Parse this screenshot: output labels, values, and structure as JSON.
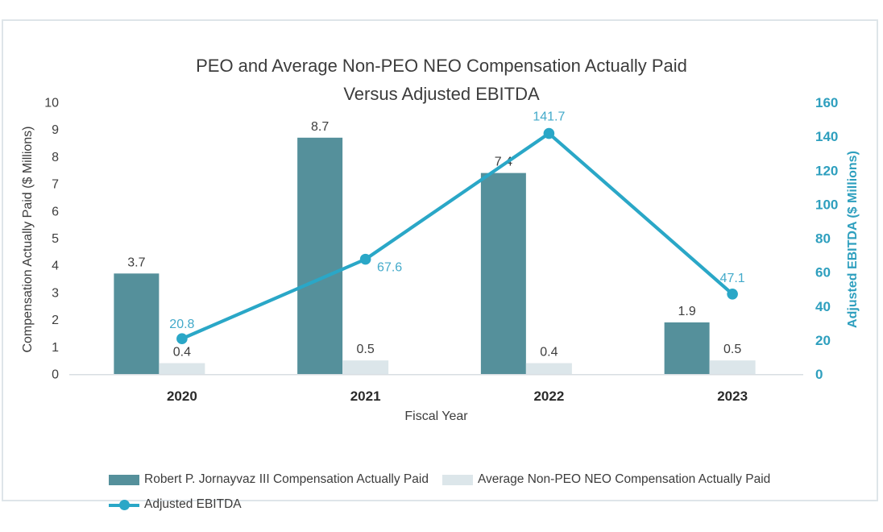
{
  "chart_data": {
    "type": "bar+line",
    "title": "PEO and Average Non-PEO NEO Compensation Actually Paid Versus Adjusted EBITDA",
    "title_lines": [
      "PEO and Average Non-PEO NEO Compensation Actually Paid",
      "Versus Adjusted EBITDA"
    ],
    "categories": [
      "2020",
      "2021",
      "2022",
      "2023"
    ],
    "series": [
      {
        "name": "Robert P. Jornayvaz III Compensation Actually Paid",
        "type": "bar",
        "axis": "left",
        "color": "#55909b",
        "values": [
          3.7,
          8.7,
          7.4,
          1.9
        ]
      },
      {
        "name": "Average Non-PEO NEO Compensation Actually Paid",
        "type": "bar",
        "axis": "left",
        "color": "#dce6ea",
        "values": [
          0.4,
          0.5,
          0.4,
          0.5
        ]
      },
      {
        "name": "Adjusted EBITDA",
        "type": "line",
        "axis": "right",
        "color": "#2aa7c7",
        "label_color": "#43aaca",
        "values": [
          20.8,
          67.6,
          141.7,
          47.1
        ]
      }
    ],
    "xlabel": "Fiscal Year",
    "ylabel_left": "Compensation Actually Paid ($ Millions)",
    "ylabel_right": "Adjusted EBITDA ($ Millions)",
    "ylim_left": [
      0,
      10
    ],
    "ytick_step_left": 1,
    "ylim_right": [
      0,
      160
    ],
    "ytick_step_right": 20,
    "grid": false,
    "legend_position": "bottom-left",
    "axis_colors": {
      "left_ticks": "#3e3e3e",
      "right_ticks": "#2e9fbe",
      "x_ticks": "#2b2b2b",
      "axis_line": "#d8dee2",
      "bar_label": "#3e3e3e"
    }
  },
  "frame": {
    "border_color": "#dee5e9",
    "background": "#ffffff"
  }
}
